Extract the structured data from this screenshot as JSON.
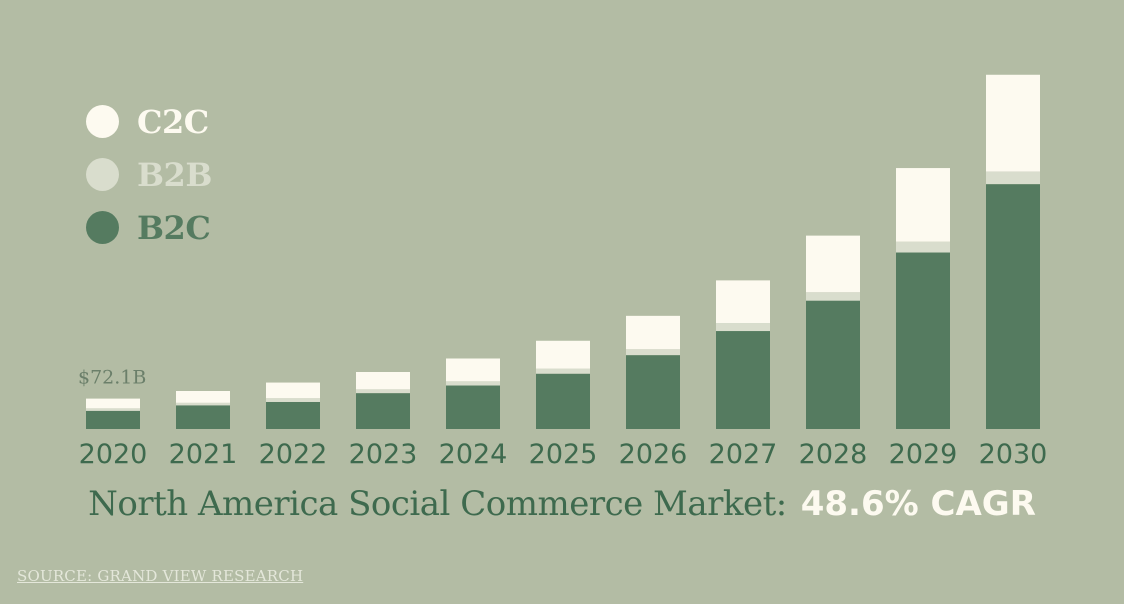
{
  "colors": {
    "background": "#b3bca4",
    "c2c": "#fdfaf0",
    "b2b": "#d9ddcd",
    "b2c": "#557b60",
    "text_dark": "#3e6a4e",
    "annotation": "#6b7f6a",
    "source": "#e4e7da"
  },
  "legend": [
    {
      "label": "C2C",
      "color_key": "c2c",
      "text_color": "#fdfaf0"
    },
    {
      "label": "B2B",
      "color_key": "b2b",
      "text_color": "#d9ddcd"
    },
    {
      "label": "B2C",
      "color_key": "b2c",
      "text_color": "#557b60"
    }
  ],
  "title": {
    "main": "North America Social Commerce Market:",
    "highlight": "48.6% CAGR"
  },
  "source": "SOURCE: GRAND VIEW RESEARCH",
  "chart_data": {
    "type": "bar",
    "stacked": true,
    "title": "North America Social Commerce Market: 48.6% CAGR",
    "xlabel": "",
    "ylabel": "",
    "categories": [
      "2020",
      "2021",
      "2022",
      "2023",
      "2024",
      "2025",
      "2026",
      "2027",
      "2028",
      "2029",
      "2030"
    ],
    "series": [
      {
        "name": "B2C",
        "color_key": "b2c",
        "values": [
          43,
          56,
          64,
          85,
          103,
          131,
          175,
          232,
          304,
          418,
          580
        ]
      },
      {
        "name": "B2B",
        "color_key": "b2b",
        "values": [
          6,
          6,
          9,
          9,
          10,
          12,
          14,
          19,
          20,
          26,
          30
        ]
      },
      {
        "name": "C2C",
        "color_key": "c2c",
        "values": [
          23,
          28,
          37,
          41,
          54,
          66,
          79,
          101,
          134,
          174,
          229
        ]
      }
    ],
    "annotations": [
      {
        "category": "2020",
        "text": "$72.1B"
      }
    ],
    "ylim": [
      0,
      900
    ],
    "grid": false,
    "legend_position": "top-left"
  }
}
